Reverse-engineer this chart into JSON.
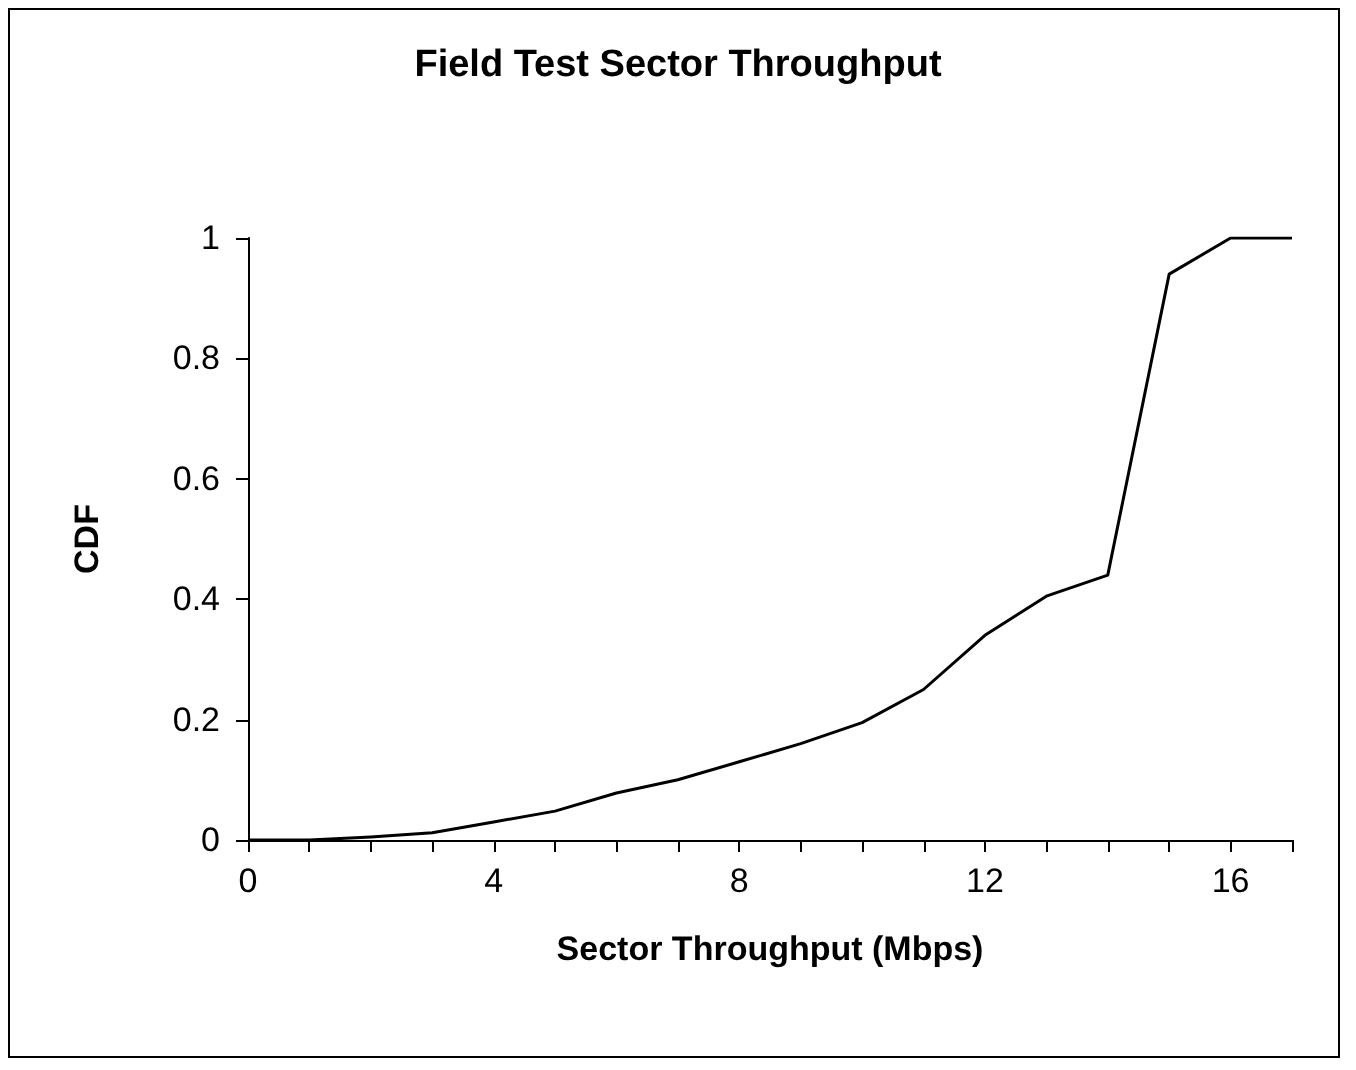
{
  "chart_data": {
    "type": "line",
    "title": "Field Test Sector Throughput",
    "xlabel": "Sector Throughput (Mbps)",
    "ylabel": "CDF",
    "x": [
      0,
      1,
      2,
      3,
      4,
      5,
      6,
      7,
      8,
      9,
      10,
      11,
      12,
      13,
      14,
      15,
      16,
      17
    ],
    "series": [
      {
        "color": "#000000",
        "values": [
          0,
          0,
          0.005,
          0.012,
          0.03,
          0.048,
          0.078,
          0.1,
          0.13,
          0.16,
          0.195,
          0.25,
          0.34,
          0.405,
          0.44,
          0.94,
          1,
          1
        ]
      }
    ],
    "xlim": [
      0,
      17
    ],
    "xticks": [
      0,
      {
        "value": 1,
        "label": null
      },
      {
        "value": 2,
        "label": null
      },
      {
        "value": 3,
        "label": null
      },
      4,
      {
        "value": 5,
        "label": null
      },
      {
        "value": 6,
        "label": null
      },
      {
        "value": 7,
        "label": null
      },
      8,
      {
        "value": 9,
        "label": null
      },
      {
        "value": 10,
        "label": null
      },
      {
        "value": 11,
        "label": null
      },
      12,
      {
        "value": 13,
        "label": null
      },
      {
        "value": 14,
        "label": null
      },
      {
        "value": 15,
        "label": null
      },
      16,
      {
        "value": 17,
        "label": null
      }
    ],
    "ylim": [
      0,
      1
    ],
    "yticks": [
      0,
      0.2,
      0.4,
      0.6,
      0.8,
      1
    ],
    "marker": "none",
    "line_style": "solid"
  }
}
